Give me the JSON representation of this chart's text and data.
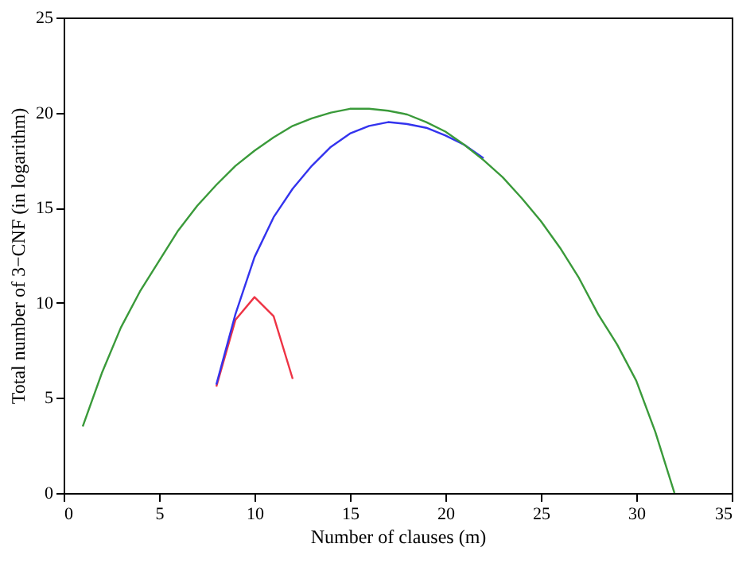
{
  "chart_data": {
    "type": "line",
    "xlabel": "Number of clauses (m)",
    "ylabel": "Total number of 3−CNF (in logarithm)",
    "xlim": [
      0,
      35
    ],
    "xticks": [
      0,
      5,
      10,
      15,
      20,
      25,
      30,
      35
    ],
    "ylim": [
      0,
      25
    ],
    "yticks": [
      0,
      5,
      10,
      15,
      20,
      25
    ],
    "grid": false,
    "legend": false,
    "marker": "none",
    "line_style": "solid",
    "series": [
      {
        "color": "#3a9a3a",
        "x": [
          1,
          2,
          3,
          4,
          5,
          6,
          7,
          8,
          9,
          10,
          11,
          12,
          13,
          14,
          15,
          16,
          17,
          18,
          19,
          20,
          21,
          22,
          23,
          24,
          25,
          26,
          27,
          28,
          29,
          30,
          31,
          32
        ],
        "values": [
          3.5,
          6.3,
          8.7,
          10.6,
          12.2,
          13.8,
          15.1,
          16.2,
          17.2,
          18.0,
          18.7,
          19.3,
          19.7,
          20.0,
          20.2,
          20.2,
          20.1,
          19.9,
          19.5,
          19.0,
          18.3,
          17.5,
          16.6,
          15.5,
          14.3,
          12.9,
          11.3,
          9.4,
          7.8,
          5.9,
          3.2,
          0
        ]
      },
      {
        "color": "#3333ee",
        "x": [
          8,
          9,
          10,
          11,
          12,
          13,
          14,
          15,
          16,
          17,
          18,
          19,
          20,
          21,
          22
        ],
        "values": [
          5.7,
          9.4,
          12.4,
          14.5,
          16.0,
          17.2,
          18.2,
          18.9,
          19.3,
          19.5,
          19.4,
          19.2,
          18.8,
          18.3,
          17.6
        ]
      },
      {
        "color": "#ee3344",
        "x": [
          8,
          9,
          10,
          11,
          12
        ],
        "values": [
          5.6,
          9.1,
          10.3,
          9.3,
          6.0
        ]
      }
    ]
  }
}
